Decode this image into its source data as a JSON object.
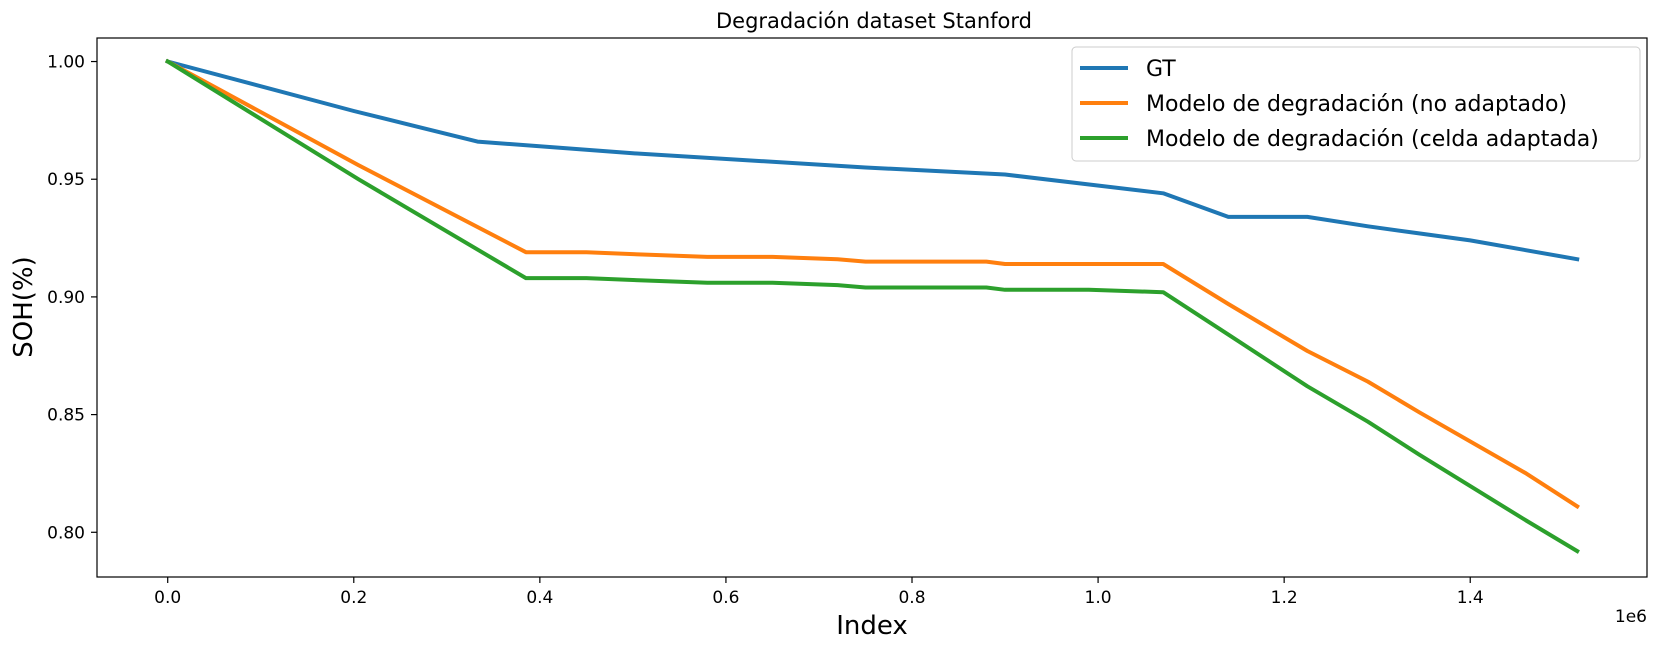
{
  "chart_data": {
    "type": "line",
    "title": "Degradación dataset Stanford",
    "xlabel": "Index",
    "ylabel": "SOH(%)",
    "x_offset_label": "1e6",
    "xlim": [
      -0.076,
      1.59
    ],
    "ylim": [
      0.781,
      1.01
    ],
    "x_ticks": [
      0.0,
      0.2,
      0.4,
      0.6,
      0.8,
      1.0,
      1.2,
      1.4
    ],
    "x_tick_labels": [
      "0.0",
      "0.2",
      "0.4",
      "0.6",
      "0.8",
      "1.0",
      "1.2",
      "1.4"
    ],
    "y_ticks": [
      0.8,
      0.85,
      0.9,
      0.95,
      1.0
    ],
    "y_tick_labels": [
      "0.80",
      "0.85",
      "0.90",
      "0.95",
      "1.00"
    ],
    "grid": false,
    "legend_position": "top-right",
    "series": [
      {
        "name": "GT",
        "color": "#1f77b4",
        "points": [
          [
            0.0,
            1.0
          ],
          [
            0.2,
            0.979
          ],
          [
            0.333,
            0.966
          ],
          [
            0.5,
            0.961
          ],
          [
            0.75,
            0.955
          ],
          [
            0.9,
            0.952
          ],
          [
            1.07,
            0.944
          ],
          [
            1.14,
            0.934
          ],
          [
            1.225,
            0.934
          ],
          [
            1.29,
            0.93
          ],
          [
            1.345,
            0.927
          ],
          [
            1.4,
            0.924
          ],
          [
            1.515,
            0.916
          ]
        ]
      },
      {
        "name": "Modelo de degradación (no adaptado)",
        "color": "#ff7f0e",
        "points": [
          [
            0.0,
            1.0
          ],
          [
            0.205,
            0.956
          ],
          [
            0.385,
            0.919
          ],
          [
            0.45,
            0.919
          ],
          [
            0.51,
            0.918
          ],
          [
            0.58,
            0.917
          ],
          [
            0.65,
            0.917
          ],
          [
            0.72,
            0.916
          ],
          [
            0.75,
            0.915
          ],
          [
            0.88,
            0.915
          ],
          [
            0.9,
            0.914
          ],
          [
            0.99,
            0.914
          ],
          [
            1.07,
            0.914
          ],
          [
            1.14,
            0.897
          ],
          [
            1.225,
            0.877
          ],
          [
            1.29,
            0.864
          ],
          [
            1.345,
            0.851
          ],
          [
            1.46,
            0.825
          ],
          [
            1.515,
            0.811
          ]
        ]
      },
      {
        "name": "Modelo de degradación (celda adaptada)",
        "color": "#2ca02c",
        "points": [
          [
            0.0,
            1.0
          ],
          [
            0.205,
            0.95
          ],
          [
            0.385,
            0.908
          ],
          [
            0.45,
            0.908
          ],
          [
            0.51,
            0.907
          ],
          [
            0.58,
            0.906
          ],
          [
            0.65,
            0.906
          ],
          [
            0.72,
            0.905
          ],
          [
            0.75,
            0.904
          ],
          [
            0.88,
            0.904
          ],
          [
            0.9,
            0.903
          ],
          [
            0.99,
            0.903
          ],
          [
            1.07,
            0.902
          ],
          [
            1.14,
            0.884
          ],
          [
            1.225,
            0.862
          ],
          [
            1.29,
            0.847
          ],
          [
            1.345,
            0.833
          ],
          [
            1.46,
            0.805
          ],
          [
            1.515,
            0.792
          ]
        ]
      }
    ]
  }
}
